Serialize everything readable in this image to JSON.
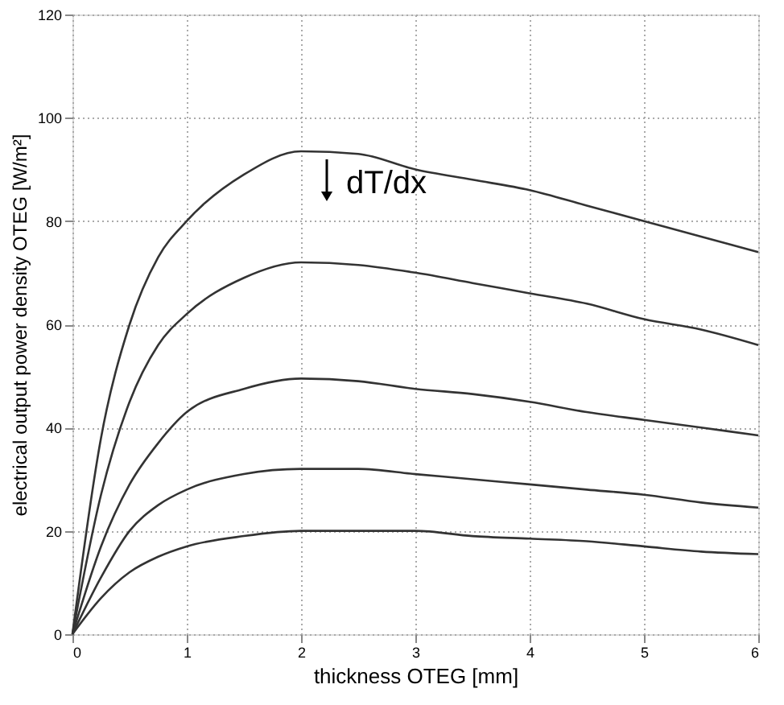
{
  "chart_data": {
    "type": "line",
    "xlabel": "thickness OTEG [mm]",
    "ylabel": "electrical output power density OTEG [W/m²]",
    "x": [
      0,
      0.25,
      0.5,
      0.75,
      1,
      1.5,
      2,
      2.5,
      3,
      3.5,
      4,
      4.5,
      5,
      5.5,
      6
    ],
    "series": [
      {
        "color": "#333333",
        "values": [
          0,
          38,
          60,
          73,
          80,
          89,
          93.5,
          93,
          90,
          88,
          86,
          83,
          80,
          77,
          74
        ]
      },
      {
        "color": "#333333",
        "values": [
          0,
          27,
          45,
          56,
          62,
          69,
          72,
          71.5,
          70,
          68,
          66,
          64,
          61,
          59,
          56
        ]
      },
      {
        "color": "#333333",
        "values": [
          0,
          17,
          29,
          37,
          43,
          47.5,
          49.5,
          49,
          47.5,
          46.5,
          45,
          43,
          41.5,
          40,
          38.5
        ]
      },
      {
        "color": "#333333",
        "values": [
          0,
          11,
          20,
          25,
          28,
          31,
          32,
          32,
          31,
          30,
          29,
          28,
          27,
          25.5,
          24.5
        ]
      },
      {
        "color": "#333333",
        "values": [
          0,
          7,
          12,
          15,
          17,
          19,
          20,
          20,
          20,
          19,
          18.5,
          18,
          17,
          16,
          15.5
        ]
      }
    ],
    "xlim": [
      0,
      6
    ],
    "xticks": [
      0,
      1,
      2,
      3,
      4,
      5,
      6
    ],
    "ylim": [
      0,
      120
    ],
    "yticks": [
      0,
      20,
      40,
      60,
      80,
      100,
      120
    ],
    "grid": true,
    "line_style": "solid",
    "marker": "none",
    "annotations": [
      "dT/dx"
    ]
  }
}
